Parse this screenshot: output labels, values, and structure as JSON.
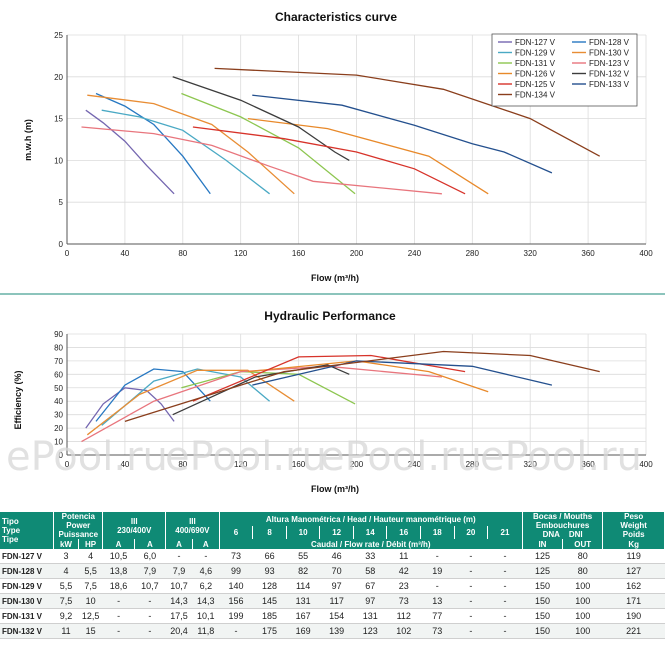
{
  "chart_data": [
    {
      "type": "line",
      "title": "Characteristics curve",
      "xlabel": "Flow (m³/h)",
      "ylabel": "m.w.h (m)",
      "xlim": [
        0,
        400
      ],
      "ylim": [
        0,
        25
      ],
      "xticks": [
        0,
        40,
        80,
        120,
        160,
        200,
        240,
        280,
        320,
        360,
        400
      ],
      "yticks": [
        0,
        5,
        10,
        15,
        20,
        25
      ],
      "grid": true,
      "legend": "top-right",
      "series": [
        {
          "name": "FDN-127  V",
          "color": "#7466b0",
          "points": [
            [
              13,
              16
            ],
            [
              25,
              14.5
            ],
            [
              40,
              12.3
            ],
            [
              55,
              9.4
            ],
            [
              74,
              6
            ]
          ]
        },
        {
          "name": "FDN-128  V",
          "color": "#2778c2",
          "points": [
            [
              20,
              18
            ],
            [
              40,
              16.5
            ],
            [
              60,
              14.3
            ],
            [
              80,
              10.5
            ],
            [
              99,
              6
            ]
          ]
        },
        {
          "name": "FDN-129  V",
          "color": "#4aa9c4",
          "points": [
            [
              24,
              16
            ],
            [
              50,
              15.2
            ],
            [
              80,
              13.6
            ],
            [
              110,
              10
            ],
            [
              140,
              6
            ]
          ]
        },
        {
          "name": "FDN-130  V",
          "color": "#e88d34",
          "points": [
            [
              14,
              17.8
            ],
            [
              60,
              16.8
            ],
            [
              100,
              14.3
            ],
            [
              125,
              11
            ],
            [
              157,
              6
            ]
          ]
        },
        {
          "name": "FDN-131  V",
          "color": "#8dc650",
          "points": [
            [
              79,
              18
            ],
            [
              120,
              15.2
            ],
            [
              160,
              11.5
            ],
            [
              199,
              6
            ]
          ]
        },
        {
          "name": "FDN-123  V",
          "color": "#e8757d",
          "points": [
            [
              10,
              14
            ],
            [
              60,
              13.2
            ],
            [
              100,
              11.8
            ],
            [
              140,
              9.3
            ],
            [
              170,
              7.5
            ],
            [
              259,
              6
            ]
          ]
        },
        {
          "name": "FDN-126  V",
          "color": "#e8892a",
          "points": [
            [
              125,
              15
            ],
            [
              180,
              13.8
            ],
            [
              250,
              10.5
            ],
            [
              291,
              6
            ]
          ]
        },
        {
          "name": "FDN-132  V",
          "color": "#3c3c3c",
          "points": [
            [
              73,
              20
            ],
            [
              120,
              17.2
            ],
            [
              160,
              14
            ],
            [
              185,
              11
            ],
            [
              195,
              10
            ]
          ]
        },
        {
          "name": "FDN-125  V",
          "color": "#d7332a",
          "points": [
            [
              87,
              14
            ],
            [
              150,
              12.6
            ],
            [
              200,
              11
            ],
            [
              240,
              9
            ],
            [
              275,
              6
            ]
          ]
        },
        {
          "name": "FDN-133  V",
          "color": "#24508e",
          "points": [
            [
              128,
              17.8
            ],
            [
              190,
              16.6
            ],
            [
              240,
              14.2
            ],
            [
              280,
              12
            ],
            [
              302,
              11
            ],
            [
              335,
              8.5
            ]
          ]
        },
        {
          "name": "FDN-134  V",
          "color": "#8a3e1c",
          "points": [
            [
              102,
              21
            ],
            [
              200,
              20.2
            ],
            [
              260,
              18.5
            ],
            [
              320,
              15
            ],
            [
              368,
              10.5
            ]
          ]
        }
      ]
    },
    {
      "type": "line",
      "title": "Hydraulic Performance",
      "xlabel": "Flow (m³/h)",
      "ylabel": "Efficiency (%)",
      "xlim": [
        0,
        400
      ],
      "ylim": [
        0,
        90
      ],
      "xticks": [
        0,
        40,
        80,
        120,
        160,
        200,
        240,
        280,
        320,
        360,
        400
      ],
      "yticks": [
        0,
        10,
        20,
        30,
        40,
        50,
        60,
        70,
        80,
        90
      ],
      "grid": true,
      "series": [
        {
          "name": "FDN-127  V",
          "color": "#7466b0",
          "points": [
            [
              13,
              20
            ],
            [
              25,
              38
            ],
            [
              40,
              50
            ],
            [
              55,
              48
            ],
            [
              65,
              38
            ],
            [
              74,
              25
            ]
          ]
        },
        {
          "name": "FDN-128  V",
          "color": "#2778c2",
          "points": [
            [
              20,
              25
            ],
            [
              40,
              52
            ],
            [
              60,
              64
            ],
            [
              80,
              62
            ],
            [
              99,
              40
            ]
          ]
        },
        {
          "name": "FDN-129  V",
          "color": "#4aa9c4",
          "points": [
            [
              24,
              22
            ],
            [
              60,
              55
            ],
            [
              90,
              64
            ],
            [
              120,
              58
            ],
            [
              140,
              40
            ]
          ]
        },
        {
          "name": "FDN-130  V",
          "color": "#e88d34",
          "points": [
            [
              14,
              15
            ],
            [
              50,
              45
            ],
            [
              90,
              63
            ],
            [
              125,
              63
            ],
            [
              157,
              40
            ]
          ]
        },
        {
          "name": "FDN-131  V",
          "color": "#8dc650",
          "points": [
            [
              79,
              50
            ],
            [
              120,
              62
            ],
            [
              160,
              60
            ],
            [
              199,
              38
            ]
          ]
        },
        {
          "name": "FDN-123  V",
          "color": "#e8757d",
          "points": [
            [
              10,
              10
            ],
            [
              60,
              40
            ],
            [
              120,
              62
            ],
            [
              180,
              66
            ],
            [
              259,
              58
            ]
          ]
        },
        {
          "name": "FDN-126  V",
          "color": "#e8892a",
          "points": [
            [
              125,
              62
            ],
            [
              200,
              70
            ],
            [
              250,
              62
            ],
            [
              291,
              47
            ]
          ]
        },
        {
          "name": "FDN-132  V",
          "color": "#3c3c3c",
          "points": [
            [
              73,
              30
            ],
            [
              130,
              58
            ],
            [
              180,
              67
            ],
            [
              195,
              60
            ]
          ]
        },
        {
          "name": "FDN-125  V",
          "color": "#d7332a",
          "points": [
            [
              87,
              40
            ],
            [
              160,
              73
            ],
            [
              210,
              74
            ],
            [
              275,
              62
            ]
          ]
        },
        {
          "name": "FDN-133  V",
          "color": "#24508e",
          "points": [
            [
              128,
              52
            ],
            [
              200,
              70
            ],
            [
              280,
              66
            ],
            [
              335,
              52
            ]
          ]
        },
        {
          "name": "FDN-134  V",
          "color": "#8a3e1c",
          "points": [
            [
              40,
              25
            ],
            [
              150,
              62
            ],
            [
              260,
              77
            ],
            [
              320,
              74
            ],
            [
              368,
              62
            ]
          ]
        }
      ]
    }
  ],
  "watermarks": [
    "ePool.ru",
    "ePool.ru",
    "ePool.ru",
    "ePool.ru"
  ],
  "table": {
    "hdr": {
      "tipo": [
        "Tipo",
        "Type",
        "Tipe"
      ],
      "power": [
        "Potencia",
        "Power",
        "Puissance"
      ],
      "kw": "kW",
      "hp": "HP",
      "v230": [
        "III",
        "230/400V"
      ],
      "v400": [
        "III",
        "400/690V"
      ],
      "amp": "A",
      "head": "Altura Manométrica / Head / Hauteur manométrique (m)",
      "heads": [
        "6",
        "8",
        "10",
        "12",
        "14",
        "16",
        "18",
        "20",
        "21"
      ],
      "flow": "Caudal / Flow rate / Débit (m³/h)",
      "mouths": [
        "Bocas / Mouths",
        "Embouchures"
      ],
      "dna": "DNA",
      "dni": "DNI",
      "in": "IN",
      "out": "OUT",
      "weight": [
        "Peso",
        "Weight",
        "Poids"
      ],
      "kg": "Kg"
    },
    "rows": [
      {
        "model": "FDN-127 V",
        "vals": [
          "3",
          "4",
          "10,5",
          "6,0",
          "-",
          "-",
          "73",
          "66",
          "55",
          "46",
          "33",
          "11",
          "-",
          "-",
          "-",
          "125",
          "80",
          "119"
        ]
      },
      {
        "model": "FDN-128 V",
        "vals": [
          "4",
          "5,5",
          "13,8",
          "7,9",
          "7,9",
          "4,6",
          "99",
          "93",
          "82",
          "70",
          "58",
          "42",
          "19",
          "-",
          "-",
          "125",
          "80",
          "127"
        ]
      },
      {
        "model": "FDN-129 V",
        "vals": [
          "5,5",
          "7,5",
          "18,6",
          "10,7",
          "10,7",
          "6,2",
          "140",
          "128",
          "114",
          "97",
          "67",
          "23",
          "-",
          "-",
          "-",
          "150",
          "100",
          "162"
        ]
      },
      {
        "model": "FDN-130 V",
        "vals": [
          "7,5",
          "10",
          "-",
          "-",
          "14,3",
          "14,3",
          "156",
          "145",
          "131",
          "117",
          "97",
          "73",
          "13",
          "-",
          "-",
          "150",
          "100",
          "171"
        ]
      },
      {
        "model": "FDN-131 V",
        "vals": [
          "9,2",
          "12,5",
          "-",
          "-",
          "17,5",
          "10,1",
          "199",
          "185",
          "167",
          "154",
          "131",
          "112",
          "77",
          "-",
          "-",
          "150",
          "100",
          "190"
        ]
      },
      {
        "model": "FDN-132 V",
        "vals": [
          "11",
          "15",
          "-",
          "-",
          "20,4",
          "11,8",
          "-",
          "175",
          "169",
          "139",
          "123",
          "102",
          "73",
          "-",
          "-",
          "150",
          "100",
          "221"
        ]
      }
    ]
  }
}
